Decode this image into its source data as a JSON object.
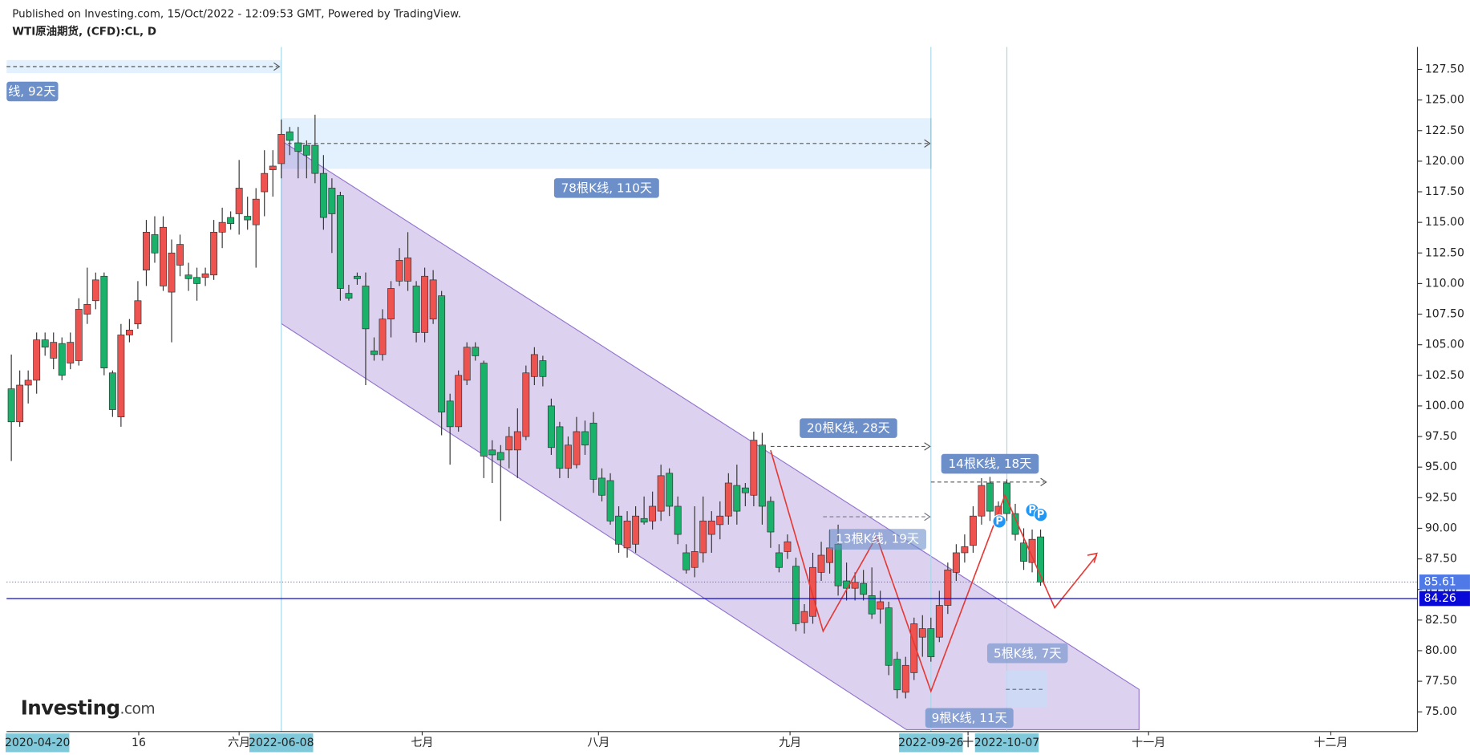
{
  "header": {
    "published": "Published on Investing.com, 15/Oct/2022 - 12:09:53 GMT, Powered by TradingView.",
    "symbol": "WTI原油期货, (CFD):CL, D"
  },
  "logo": {
    "name": "Investing",
    "suffix": ".com"
  },
  "chart_data": {
    "type": "candlestick",
    "up_color": "#ef5350",
    "down_color": "#1ab26b",
    "open": [
      101.4,
      98.7,
      101.7,
      102.1,
      105.4,
      103.9,
      105.1,
      103.5,
      103.7,
      107.5,
      108.6,
      110.6,
      102.7,
      99.1,
      105.8,
      106.7,
      111.1,
      114.0,
      109.8,
      109.3,
      111.5,
      110.7,
      110.5,
      110.5,
      110.7,
      114.2,
      115.4,
      115.7,
      115.5,
      114.8,
      117.5,
      119.3,
      119.8,
      122.4,
      121.5,
      121.3,
      121.3,
      119.0,
      117.8,
      117.2,
      109.2,
      110.6,
      109.8,
      104.5,
      104.2,
      107.1,
      110.2,
      110.2,
      109.8,
      106.0,
      107.1,
      109.0,
      100.4,
      98.3,
      102.1,
      104.8,
      103.5,
      96.4,
      96.2,
      96.4,
      96.4,
      97.5,
      102.4,
      103.7,
      100.0,
      98.3,
      94.9,
      95.2,
      97.9,
      98.6,
      94.1,
      93.9,
      91.0,
      88.4,
      88.7,
      90.8,
      90.6,
      91.4,
      94.5,
      91.8,
      88.0,
      86.8,
      88.0,
      89.5,
      90.3,
      91.0,
      93.5,
      93.3,
      92.7,
      96.8,
      92.2,
      88.0,
      88.1,
      86.9,
      82.3,
      82.8,
      86.4,
      87.2,
      88.7,
      85.7,
      85.1,
      85.5,
      84.5,
      83.4,
      83.5,
      79.3,
      76.6,
      78.2,
      81.1,
      81.8,
      81.1,
      83.7,
      86.4,
      88.0,
      88.6,
      91.0,
      93.7,
      91.0,
      93.7,
      91.2,
      88.8,
      87.2,
      89.3
    ],
    "high": [
      104.2,
      102.9,
      102.9,
      106.0,
      106.0,
      106.0,
      105.6,
      106.0,
      108.8,
      111.3,
      110.9,
      110.9,
      102.9,
      106.7,
      107.1,
      110.2,
      115.2,
      115.5,
      115.5,
      113.6,
      114.0,
      111.7,
      111.3,
      111.3,
      115.2,
      116.2,
      115.9,
      120.1,
      117.1,
      117.8,
      120.9,
      120.9,
      123.4,
      122.8,
      122.8,
      121.7,
      123.8,
      120.5,
      118.6,
      117.5,
      109.9,
      110.9,
      110.9,
      105.6,
      107.9,
      110.2,
      112.9,
      114.2,
      110.2,
      111.3,
      111.1,
      109.4,
      101.0,
      102.9,
      105.2,
      105.2,
      103.7,
      97.2,
      96.8,
      98.3,
      99.8,
      103.3,
      104.8,
      104.1,
      100.6,
      98.7,
      97.5,
      99.1,
      98.8,
      99.5,
      94.9,
      94.5,
      91.8,
      91.4,
      91.8,
      92.6,
      93.0,
      95.2,
      94.9,
      92.6,
      88.7,
      91.8,
      92.6,
      91.4,
      92.2,
      94.5,
      95.2,
      93.7,
      97.9,
      97.8,
      92.6,
      88.7,
      89.5,
      87.6,
      83.8,
      88.0,
      88.9,
      89.9,
      90.3,
      87.2,
      86.4,
      86.6,
      86.8,
      84.9,
      84.0,
      79.9,
      79.5,
      82.7,
      82.9,
      82.7,
      84.9,
      87.2,
      88.7,
      89.5,
      91.8,
      94.1,
      94.2,
      92.2,
      94.0,
      92.0,
      90.0,
      89.9,
      89.9
    ],
    "low": [
      95.5,
      98.3,
      100.2,
      101.0,
      104.1,
      103.0,
      102.1,
      103.0,
      103.3,
      106.7,
      107.9,
      102.5,
      99.1,
      98.3,
      105.2,
      106.3,
      109.8,
      111.7,
      109.4,
      105.2,
      110.6,
      109.4,
      108.6,
      109.8,
      110.3,
      112.9,
      114.4,
      114.0,
      114.4,
      111.3,
      115.5,
      117.1,
      118.6,
      120.5,
      118.6,
      118.6,
      118.2,
      114.4,
      112.5,
      108.6,
      108.6,
      109.9,
      101.7,
      103.7,
      103.7,
      105.6,
      109.8,
      109.4,
      105.2,
      105.2,
      106.7,
      97.6,
      95.2,
      97.9,
      101.7,
      103.7,
      94.1,
      93.7,
      90.6,
      94.9,
      94.1,
      97.2,
      101.7,
      101.6,
      96.0,
      94.1,
      94.1,
      94.9,
      96.0,
      92.9,
      92.2,
      90.3,
      88.0,
      87.6,
      88.0,
      90.3,
      89.9,
      90.6,
      91.0,
      88.7,
      86.3,
      86.0,
      87.2,
      88.0,
      89.1,
      90.3,
      90.3,
      91.8,
      91.8,
      90.3,
      88.4,
      86.4,
      87.5,
      81.6,
      81.4,
      82.2,
      85.7,
      86.3,
      84.5,
      84.1,
      84.1,
      84.1,
      82.6,
      82.2,
      78.0,
      76.1,
      76.1,
      77.6,
      79.5,
      79.1,
      80.7,
      83.0,
      85.7,
      87.2,
      88.0,
      90.3,
      90.6,
      90.5,
      90.6,
      89.0,
      86.6,
      86.4,
      85.3
    ],
    "close": [
      98.7,
      101.7,
      102.1,
      105.4,
      104.8,
      105.2,
      102.5,
      105.2,
      107.9,
      108.3,
      110.3,
      103.1,
      99.7,
      105.8,
      106.2,
      108.6,
      114.2,
      112.5,
      114.6,
      112.5,
      113.2,
      110.4,
      110.0,
      110.8,
      114.2,
      115.0,
      114.9,
      117.8,
      115.2,
      116.9,
      119.0,
      119.6,
      122.2,
      121.7,
      120.8,
      120.5,
      119.0,
      115.4,
      115.7,
      109.6,
      108.8,
      110.4,
      106.3,
      104.2,
      107.1,
      109.6,
      111.9,
      112.1,
      106.0,
      110.6,
      110.3,
      99.5,
      98.3,
      102.5,
      104.8,
      104.1,
      95.9,
      96.0,
      95.6,
      97.5,
      97.9,
      102.7,
      104.2,
      102.4,
      96.6,
      94.9,
      96.8,
      97.9,
      96.8,
      94.0,
      92.7,
      90.6,
      88.7,
      90.6,
      91.0,
      90.5,
      91.8,
      94.3,
      91.8,
      89.5,
      86.6,
      88.1,
      90.6,
      90.6,
      91.0,
      93.7,
      91.4,
      92.9,
      97.2,
      91.8,
      89.7,
      86.8,
      88.9,
      82.2,
      83.2,
      86.8,
      87.8,
      88.4,
      85.3,
      85.1,
      85.6,
      84.6,
      83.0,
      84.0,
      78.8,
      76.8,
      78.8,
      82.2,
      81.8,
      79.5,
      83.7,
      86.6,
      88.0,
      88.5,
      91.0,
      93.5,
      91.4,
      91.8,
      91.2,
      89.5,
      87.3,
      89.1,
      85.61
    ],
    "xlim": [
      -0.56,
      166.67
    ],
    "xticks": [
      {
        "value": 3.1,
        "label": "2020-04-20",
        "highlight": true
      },
      {
        "value": 15.1,
        "label": "16"
      },
      {
        "value": 27,
        "label": "六月"
      },
      {
        "value": 32,
        "label": "2022-06-08",
        "highlight": true
      },
      {
        "value": 48.7,
        "label": "七月"
      },
      {
        "value": 69.6,
        "label": "八月"
      },
      {
        "value": 92.3,
        "label": "九月"
      },
      {
        "value": 109,
        "label": "2022-09-26",
        "highlight": true
      },
      {
        "value": 113.4,
        "label": "十"
      },
      {
        "value": 118,
        "label": "2022-10-07",
        "highlight": true
      },
      {
        "value": 134.8,
        "label": "十一月"
      },
      {
        "value": 156.4,
        "label": "十二月"
      }
    ],
    "ylim": [
      73.39,
      129.34
    ],
    "yticks": [
      {
        "value": 75,
        "label": "75.00"
      },
      {
        "value": 77.5,
        "label": "77.50"
      },
      {
        "value": 80,
        "label": "80.00"
      },
      {
        "value": 82.5,
        "label": "82.50"
      },
      {
        "value": 85,
        "label": "85.00"
      },
      {
        "value": 87.5,
        "label": "87.50"
      },
      {
        "value": 90,
        "label": "90.00"
      },
      {
        "value": 92.5,
        "label": "92.50"
      },
      {
        "value": 95,
        "label": "95.00"
      },
      {
        "value": 97.5,
        "label": "97.50"
      },
      {
        "value": 100,
        "label": "100.00"
      },
      {
        "value": 102.5,
        "label": "102.50"
      },
      {
        "value": 105,
        "label": "105.00"
      },
      {
        "value": 107.5,
        "label": "107.50"
      },
      {
        "value": 110,
        "label": "110.00"
      },
      {
        "value": 112.5,
        "label": "112.50"
      },
      {
        "value": 115,
        "label": "115.00"
      },
      {
        "value": 117.5,
        "label": "117.50"
      },
      {
        "value": 120,
        "label": "120.00"
      },
      {
        "value": 122.5,
        "label": "122.50"
      },
      {
        "value": 125,
        "label": "125.00"
      },
      {
        "value": 127.5,
        "label": "127.50"
      }
    ],
    "price_lines": [
      {
        "value": 85.61,
        "color": "#4f79e6",
        "style": "dotted"
      },
      {
        "value": 84.26,
        "color": "#0a0ad8",
        "style": "solid"
      }
    ],
    "annotations": [
      "线, 92天",
      "78根K线, 110天",
      "20根K线, 28天",
      "14根K线, 18天",
      "13根K线, 19天",
      "5根K线, 7天",
      "9根K线, 11天",
      "P",
      "P",
      "P"
    ]
  }
}
